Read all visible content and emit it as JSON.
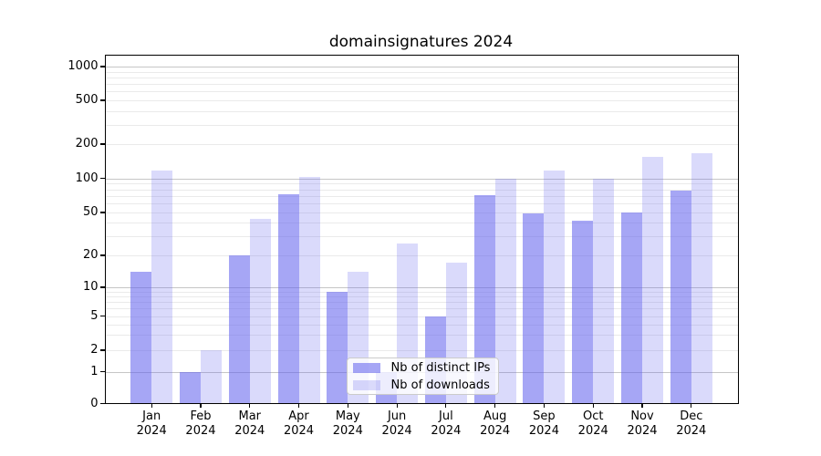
{
  "title": "domainsignatures 2024",
  "chart_data": {
    "type": "bar",
    "categories": [
      "Jan",
      "Feb",
      "Mar",
      "Apr",
      "May",
      "Jun",
      "Jul",
      "Aug",
      "Sep",
      "Oct",
      "Nov",
      "Dec"
    ],
    "year_label": "2024",
    "series": [
      {
        "name": "Nb of distinct IPs",
        "color": "rgba(97,97,238,0.56)",
        "values": [
          14,
          1,
          20,
          73,
          9,
          1,
          5,
          71,
          49,
          42,
          50,
          78
        ]
      },
      {
        "name": "Nb of downloads",
        "color": "rgba(97,97,238,0.23)",
        "values": [
          118,
          2,
          44,
          102,
          14,
          26,
          17,
          100,
          116,
          100,
          154,
          165
        ]
      }
    ],
    "yticks": [
      0,
      1,
      2,
      5,
      10,
      20,
      50,
      100,
      200,
      500,
      1000
    ],
    "scale": "symlog",
    "ylim": [
      0,
      1280
    ],
    "grid": true,
    "legend_position": "lower center"
  },
  "colors": {
    "bar_dark": "rgba(97,97,238,0.56)",
    "bar_light": "rgba(97,97,238,0.23)",
    "major_grid": "#c6c6c6",
    "minor_grid": "#eaeaea",
    "axis": "#000000"
  }
}
